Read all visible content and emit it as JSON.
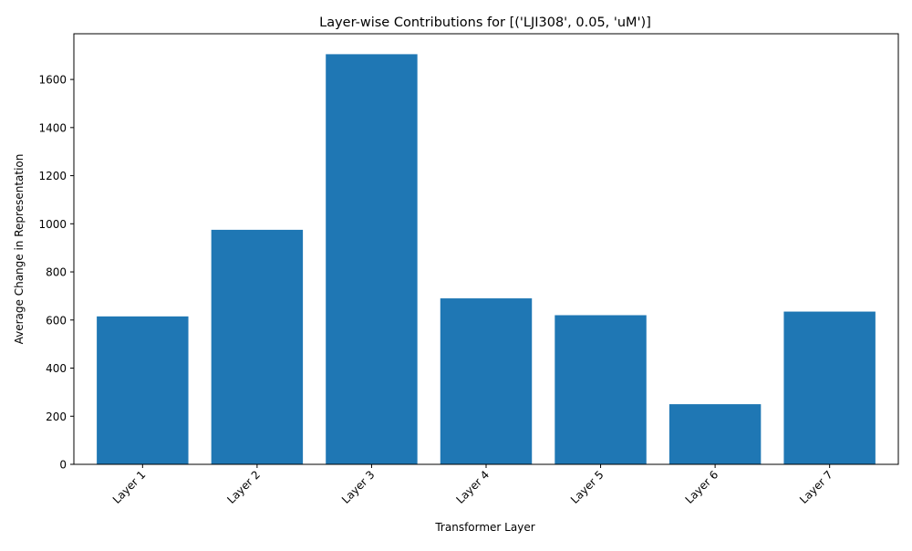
{
  "chart_data": {
    "type": "bar",
    "title": "Layer-wise Contributions for [('LJI308', 0.05, 'uM')]",
    "xlabel": "Transformer Layer",
    "ylabel": "Average Change in Representation",
    "categories": [
      "Layer 1",
      "Layer 2",
      "Layer 3",
      "Layer 4",
      "Layer 5",
      "Layer 6",
      "Layer 7"
    ],
    "values": [
      615,
      975,
      1705,
      690,
      620,
      250,
      635
    ],
    "ylim": [
      0,
      1790
    ],
    "yticks": [
      0,
      200,
      400,
      600,
      800,
      1000,
      1200,
      1400,
      1600
    ],
    "bar_color": "#1f77b4",
    "grid": false,
    "legend": "none"
  }
}
